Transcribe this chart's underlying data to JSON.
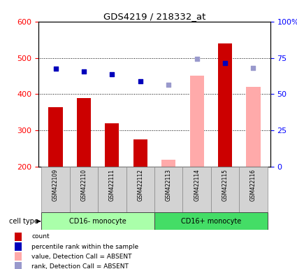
{
  "title": "GDS4219 / 218332_at",
  "samples": [
    "GSM422109",
    "GSM422110",
    "GSM422111",
    "GSM422112",
    "GSM422113",
    "GSM422114",
    "GSM422115",
    "GSM422116"
  ],
  "bar_values": [
    365,
    390,
    320,
    275,
    220,
    450,
    540,
    420
  ],
  "bar_present": [
    true,
    true,
    true,
    true,
    false,
    false,
    true,
    false
  ],
  "dot_values": [
    470,
    462,
    455,
    435,
    425,
    498,
    485,
    472
  ],
  "dot_present": [
    true,
    true,
    true,
    true,
    false,
    false,
    true,
    false
  ],
  "ylim_left": [
    200,
    600
  ],
  "ylim_right": [
    0,
    100
  ],
  "yticks_left": [
    200,
    300,
    400,
    500,
    600
  ],
  "yticks_right": [
    0,
    25,
    50,
    75,
    100
  ],
  "bar_color_present": "#cc0000",
  "bar_color_absent": "#ffaaaa",
  "dot_color_present": "#0000bb",
  "dot_color_absent": "#9999cc",
  "group1_label": "CD16- monocyte",
  "group2_label": "CD16+ monocyte",
  "group1_color": "#aaffaa",
  "group2_color": "#44dd66",
  "group1_indices": [
    0,
    1,
    2,
    3
  ],
  "group2_indices": [
    4,
    5,
    6,
    7
  ],
  "legend_items": [
    {
      "color": "#cc0000",
      "label": "count"
    },
    {
      "color": "#0000bb",
      "label": "percentile rank within the sample"
    },
    {
      "color": "#ffaaaa",
      "label": "value, Detection Call = ABSENT"
    },
    {
      "color": "#9999cc",
      "label": "rank, Detection Call = ABSENT"
    }
  ],
  "cell_type_label": "cell type"
}
